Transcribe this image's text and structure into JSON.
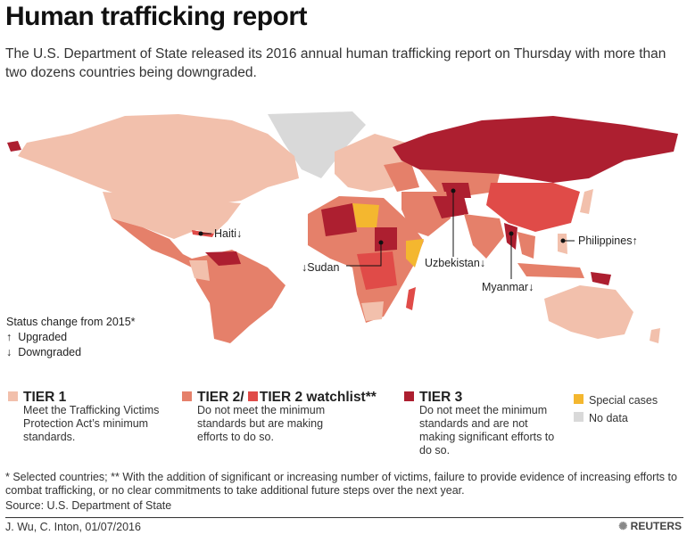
{
  "title": "Human trafficking report",
  "subtitle": "The U.S. Department of State released its 2016 annual human trafficking report on Thursday with more than two dozens countries being downgraded.",
  "colors": {
    "tier1": "#f2c0ac",
    "tier2": "#e5806a",
    "watchlist": "#e04b48",
    "tier3": "#ad1f30",
    "special": "#f4b72f",
    "nodata": "#d9d9d9"
  },
  "callouts": [
    {
      "country": "Haiti",
      "label": "Haiti",
      "arrow": "↓"
    },
    {
      "country": "Sudan",
      "label": "Sudan",
      "arrow": "↓"
    },
    {
      "country": "Uzbekistan",
      "label": "Uzbekistan",
      "arrow": "↓"
    },
    {
      "country": "Myanmar",
      "label": "Myanmar",
      "arrow": "↓"
    },
    {
      "country": "Philippines",
      "label": "Philippines",
      "arrow": "↑"
    }
  ],
  "status": {
    "title": "Status change from 2015*",
    "up_arrow": "↑",
    "up": "Upgraded",
    "down_arrow": "↓",
    "down": "Downgraded"
  },
  "legend": {
    "tier1": {
      "label": "TIER 1",
      "desc": "Meet the Trafficking Victims Protection Act’s minimum standards."
    },
    "tier2": {
      "label": "TIER 2/",
      "desc": "Do not meet the minimum standards but are making efforts to do so."
    },
    "watchlist": {
      "label": "TIER 2 watchlist**"
    },
    "tier3": {
      "label": "TIER 3",
      "desc": "Do not meet the minimum standards and are not making significant efforts to do so."
    },
    "special": "Special cases",
    "nodata": "No data"
  },
  "note": "* Selected countries; ** With the addition of significant or increasing number of victims, failure to provide evidence of increasing efforts to combat trafficking, or no clear commitments to take additional future steps over the next year.",
  "source": "Source: U.S. Department of State",
  "credit": "J. Wu,  C. Inton, 01/07/2016",
  "brand": "REUTERS"
}
